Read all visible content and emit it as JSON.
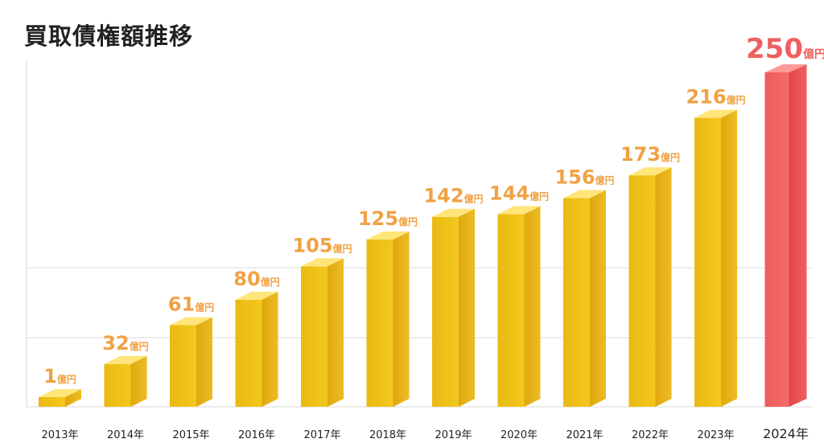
{
  "chart_data": {
    "type": "bar",
    "title": "買取債権額推移",
    "categories": [
      "2013年",
      "2014年",
      "2015年",
      "2016年",
      "2017年",
      "2018年",
      "2019年",
      "2020年",
      "2021年",
      "2022年",
      "2023年",
      "2024年"
    ],
    "values": [
      1,
      32,
      61,
      80,
      105,
      125,
      142,
      144,
      156,
      173,
      216,
      250
    ],
    "value_labels": [
      "1",
      "32",
      "61",
      "80",
      "105",
      "125",
      "142",
      "144",
      "156",
      "173",
      "216",
      "250"
    ],
    "value_unit": "億円",
    "highlight_index": 11,
    "ylim": [
      0,
      250
    ],
    "grid": true,
    "colors": {
      "bar_front": "#f2c81f",
      "bar_side": "#e0a80e",
      "bar_top": "#ffe57a",
      "highlight_front": "#f26b6b",
      "highlight_side": "#e34545",
      "highlight_top": "#ff9a9a",
      "label": "#f0a244",
      "highlight_label": "#ef5f5f",
      "grid": "#d8d8d8",
      "axis_text": "#222222"
    }
  }
}
